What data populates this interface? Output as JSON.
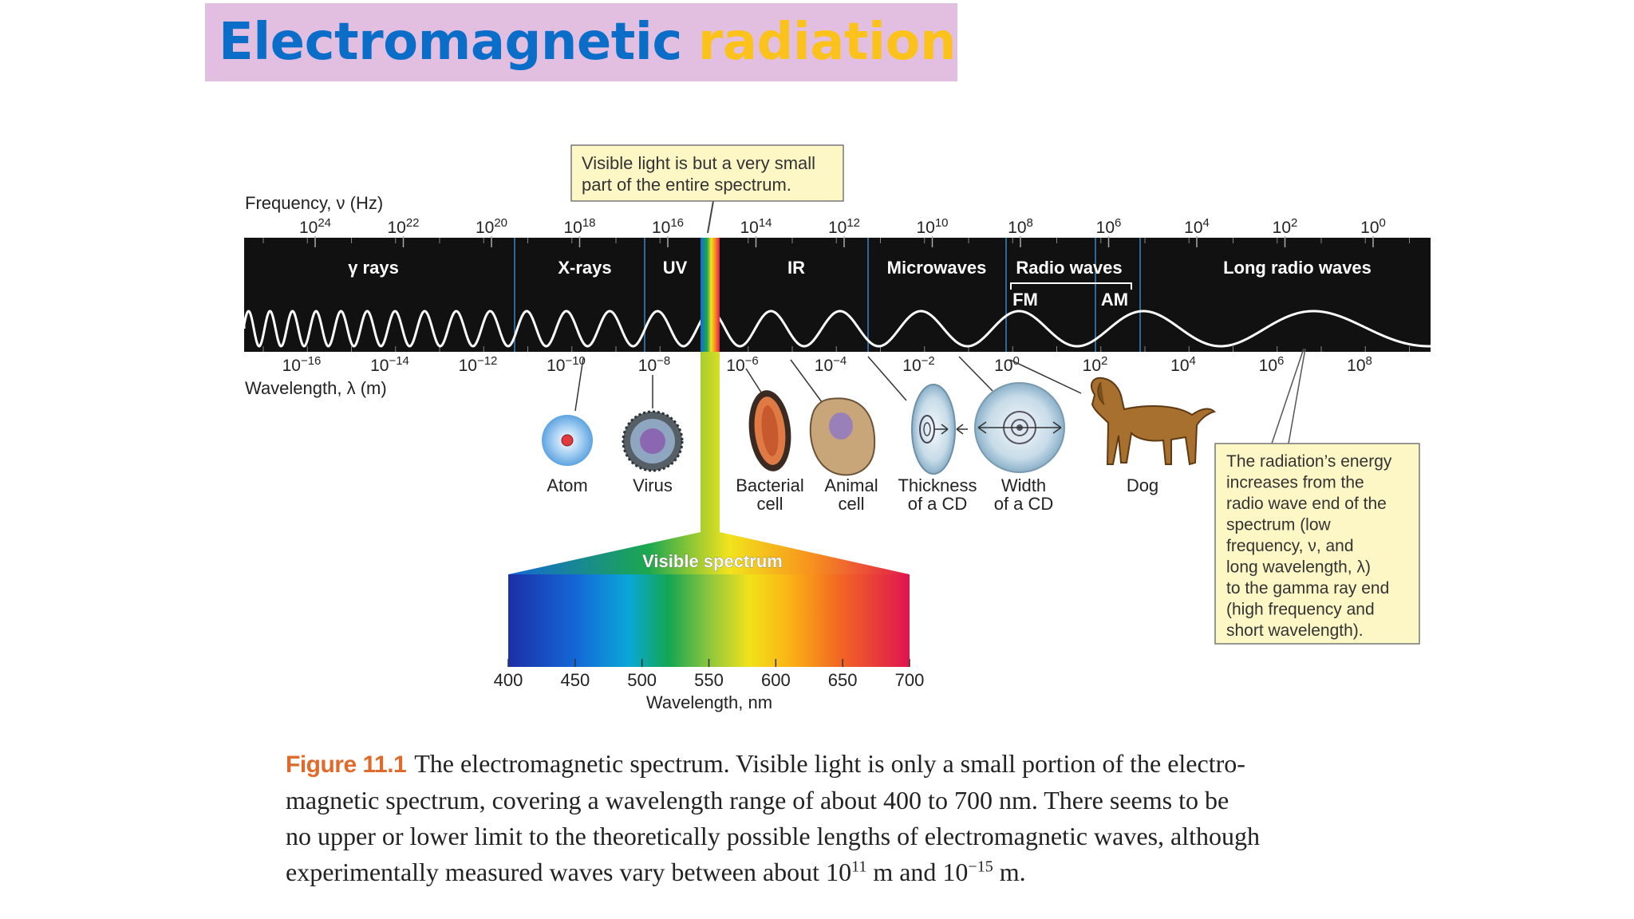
{
  "title": {
    "part1": "Electromagnetic",
    "part2": "radiation"
  },
  "colors": {
    "title_blue": "#0a6ec9",
    "title_yellow": "#fcc21c",
    "title_bg": "#e2bfe0",
    "band_black": "#111111",
    "callout_bg": "#fdf7c5",
    "caption_label": "#e06a2b"
  },
  "frequency_axis": {
    "label": "Frequency, ν (Hz)",
    "ticks": [
      {
        "base": "10",
        "exp": "24"
      },
      {
        "base": "10",
        "exp": "22"
      },
      {
        "base": "10",
        "exp": "20"
      },
      {
        "base": "10",
        "exp": "18"
      },
      {
        "base": "10",
        "exp": "16"
      },
      {
        "base": "10",
        "exp": "14"
      },
      {
        "base": "10",
        "exp": "12"
      },
      {
        "base": "10",
        "exp": "10"
      },
      {
        "base": "10",
        "exp": "8"
      },
      {
        "base": "10",
        "exp": "6"
      },
      {
        "base": "10",
        "exp": "4"
      },
      {
        "base": "10",
        "exp": "2"
      },
      {
        "base": "10",
        "exp": "0"
      }
    ]
  },
  "wavelength_axis": {
    "label": "Wavelength, λ (m)",
    "ticks": [
      {
        "base": "10",
        "exp": "−16"
      },
      {
        "base": "10",
        "exp": "−14"
      },
      {
        "base": "10",
        "exp": "−12"
      },
      {
        "base": "10",
        "exp": "−10"
      },
      {
        "base": "10",
        "exp": "−8"
      },
      {
        "base": "10",
        "exp": "−6"
      },
      {
        "base": "10",
        "exp": "−4"
      },
      {
        "base": "10",
        "exp": "−2"
      },
      {
        "base": "10",
        "exp": "0"
      },
      {
        "base": "10",
        "exp": "2"
      },
      {
        "base": "10",
        "exp": "4"
      },
      {
        "base": "10",
        "exp": "6"
      },
      {
        "base": "10",
        "exp": "8"
      }
    ]
  },
  "bands": [
    "γ rays",
    "X-rays",
    "UV",
    "IR",
    "Microwaves",
    "Radio waves",
    "Long radio waves"
  ],
  "radio_sub_bands": [
    "FM",
    "AM"
  ],
  "top_callout": [
    "Visible light is but a very small",
    "part of the entire spectrum."
  ],
  "objects": [
    {
      "id": "atom",
      "label": [
        "Atom"
      ]
    },
    {
      "id": "virus",
      "label": [
        "Virus"
      ]
    },
    {
      "id": "bacterial-cell",
      "label": [
        "Bacterial",
        "cell"
      ]
    },
    {
      "id": "animal-cell",
      "label": [
        "Animal",
        "cell"
      ]
    },
    {
      "id": "cd-thickness",
      "label": [
        "Thickness",
        "of a CD"
      ]
    },
    {
      "id": "cd-width",
      "label": [
        "Width",
        "of a CD"
      ]
    },
    {
      "id": "dog",
      "label": [
        "Dog"
      ]
    }
  ],
  "visible_spectrum": {
    "title": "Visible spectrum",
    "ticks": [
      "400",
      "450",
      "500",
      "550",
      "600",
      "650",
      "700"
    ],
    "axis_label": "Wavelength, nm"
  },
  "energy_callout": [
    "The radiation’s energy",
    "increases from the",
    "radio wave end of the",
    "spectrum (low",
    "frequency, ν, and",
    "long wavelength, λ)",
    "to the gamma ray end",
    "(high frequency and",
    "short wavelength)."
  ],
  "caption": {
    "label": "Figure 11.1",
    "line1": "The electromagnetic spectrum. Visible light is only a small portion of the electro-",
    "line2": "magnetic spectrum, covering a wavelength range of about 400 to 700 nm. There seems to be",
    "line3": "no upper or lower limit to the theoretically possible lengths of electromagnetic waves, although",
    "line4_a": "experimentally measured waves vary between about 10",
    "line4_sup1": "11",
    "line4_b": " m and 10",
    "line4_sup2": "−15",
    "line4_c": " m."
  }
}
